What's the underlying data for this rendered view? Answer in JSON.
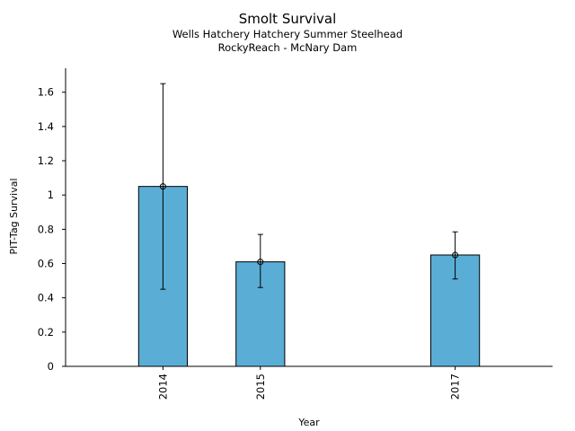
{
  "chart_data": {
    "type": "bar",
    "title": "Smolt Survival",
    "subtitle_lines": [
      "Wells Hatchery Hatchery Summer Steelhead",
      "RockyReach - McNary Dam"
    ],
    "xlabel": "Year",
    "ylabel": "PIT-Tag Survival",
    "x_axis_range": [
      2013,
      2018
    ],
    "x": [
      2014,
      2015,
      2017
    ],
    "x_tick_labels": [
      "2014",
      "2015",
      "2017"
    ],
    "values": [
      1.05,
      0.61,
      0.65
    ],
    "error_low": [
      0.45,
      0.46,
      0.51
    ],
    "error_high": [
      1.65,
      0.77,
      0.785
    ],
    "ylim": [
      0,
      1.74
    ],
    "y_ticks": [
      0,
      0.2,
      0.4,
      0.6,
      0.8,
      1,
      1.2,
      1.4,
      1.6
    ],
    "y_tick_labels": [
      "0",
      "0.2",
      "0.4",
      "0.6",
      "0.8",
      "1",
      "1.2",
      "1.4",
      "1.6"
    ],
    "grid": false,
    "legend": "none",
    "bar_color": "#5aaed6",
    "edge_color": "#000000"
  }
}
